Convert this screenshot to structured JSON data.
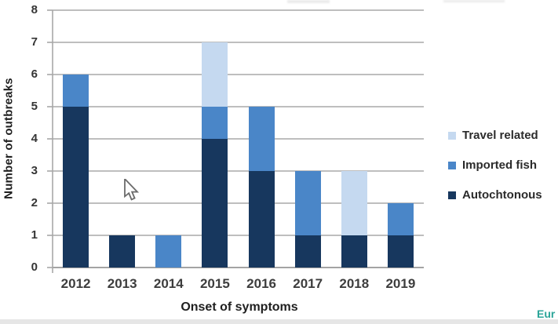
{
  "chart_data": {
    "type": "bar",
    "stacked": true,
    "categories": [
      "2012",
      "2013",
      "2014",
      "2015",
      "2016",
      "2017",
      "2018",
      "2019"
    ],
    "series": [
      {
        "name": "Autochtonous",
        "color": "#17375e",
        "values": [
          5,
          1,
          0,
          4,
          3,
          1,
          1,
          1
        ]
      },
      {
        "name": "Imported fish",
        "color": "#4a86c8",
        "values": [
          1,
          0,
          1,
          1,
          2,
          2,
          0,
          1
        ]
      },
      {
        "name": "Travel related",
        "color": "#c5d9f0",
        "values": [
          0,
          0,
          0,
          2,
          0,
          0,
          2,
          0
        ]
      }
    ],
    "totals_by_year": [
      6,
      1,
      1,
      7,
      5,
      3,
      3,
      2
    ],
    "xlabel": "Onset of symptoms",
    "ylabel": "Number of outbreaks",
    "ylim": [
      0,
      8
    ],
    "yticks": [
      "0",
      "1",
      "2",
      "3",
      "4",
      "5",
      "6",
      "7",
      "8"
    ],
    "grid": true,
    "legend_position": "right"
  },
  "legend": {
    "items": [
      {
        "label": "Travel related",
        "color": "#c5d9f0"
      },
      {
        "label": "Imported fish",
        "color": "#4a86c8"
      },
      {
        "label": "Autochtonous",
        "color": "#17375e"
      }
    ]
  },
  "watermark": {
    "text": "Eur",
    "color": "#2ba498"
  }
}
